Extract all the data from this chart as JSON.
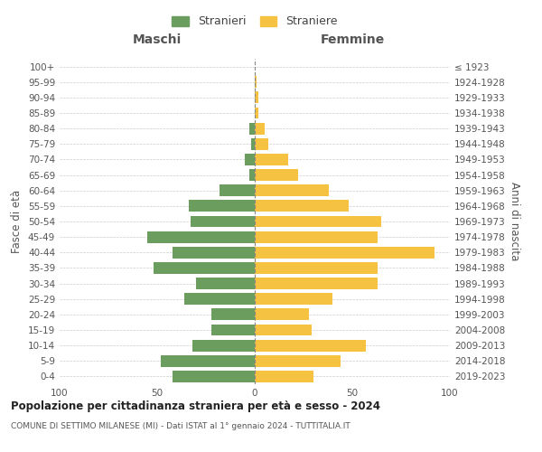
{
  "age_groups": [
    "0-4",
    "5-9",
    "10-14",
    "15-19",
    "20-24",
    "25-29",
    "30-34",
    "35-39",
    "40-44",
    "45-49",
    "50-54",
    "55-59",
    "60-64",
    "65-69",
    "70-74",
    "75-79",
    "80-84",
    "85-89",
    "90-94",
    "95-99",
    "100+"
  ],
  "birth_years": [
    "2019-2023",
    "2014-2018",
    "2009-2013",
    "2004-2008",
    "1999-2003",
    "1994-1998",
    "1989-1993",
    "1984-1988",
    "1979-1983",
    "1974-1978",
    "1969-1973",
    "1964-1968",
    "1959-1963",
    "1954-1958",
    "1949-1953",
    "1944-1948",
    "1939-1943",
    "1934-1938",
    "1929-1933",
    "1924-1928",
    "≤ 1923"
  ],
  "maschi": [
    42,
    48,
    32,
    22,
    22,
    36,
    30,
    52,
    42,
    55,
    33,
    34,
    18,
    3,
    5,
    2,
    3,
    0,
    0,
    0,
    0
  ],
  "femmine": [
    30,
    44,
    57,
    29,
    28,
    40,
    63,
    63,
    92,
    63,
    65,
    48,
    38,
    22,
    17,
    7,
    5,
    2,
    2,
    1,
    0
  ],
  "color_maschi": "#6b9e5e",
  "color_femmine": "#f5c242",
  "title": "Popolazione per cittadinanza straniera per età e sesso - 2024",
  "subtitle": "COMUNE DI SETTIMO MILANESE (MI) - Dati ISTAT al 1° gennaio 2024 - TUTTITALIA.IT",
  "label_maschi": "Maschi",
  "label_femmine": "Femmine",
  "ylabel_left": "Fasce di età",
  "ylabel_right": "Anni di nascita",
  "legend_maschi": "Stranieri",
  "legend_femmine": "Straniere",
  "xlim": 100,
  "background_color": "#ffffff",
  "grid_color": "#cccccc"
}
